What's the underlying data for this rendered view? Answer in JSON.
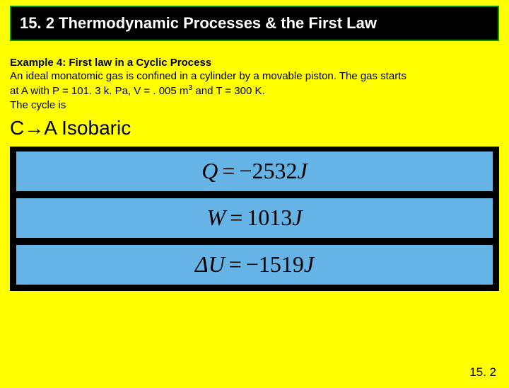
{
  "title": "15. 2 Thermodynamic Processes & the First Law",
  "example": {
    "heading": "Example 4: First law in a Cyclic Process",
    "line1": "An ideal monatomic gas is confined in a cylinder by a movable piston.  The gas starts",
    "line2_prefix": "at A with P = 101. 3 k. Pa, V = . 005 m",
    "line2_sup": "3",
    "line2_suffix": " and T = 300 K.",
    "cycle": "The cycle is"
  },
  "process": {
    "from": "C",
    "to": "A",
    "type": "Isobaric"
  },
  "equations": {
    "q": {
      "lhs": "Q",
      "op": "=",
      "sign": "−",
      "value": "2532",
      "unit": "J"
    },
    "w": {
      "lhs": "W",
      "op": "=",
      "sign": "",
      "value": "1013",
      "unit": "J"
    },
    "du": {
      "lhs": "ΔU",
      "op": "=",
      "sign": "−",
      "value": "1519",
      "unit": "J"
    }
  },
  "footer": "15. 2",
  "colors": {
    "page_bg": "#ffff00",
    "title_bg": "#000000",
    "title_border": "#009900",
    "title_text": "#ffffff",
    "eq_wrap_bg": "#000000",
    "eq_box_bg": "#66b3e6",
    "text": "#000000"
  }
}
